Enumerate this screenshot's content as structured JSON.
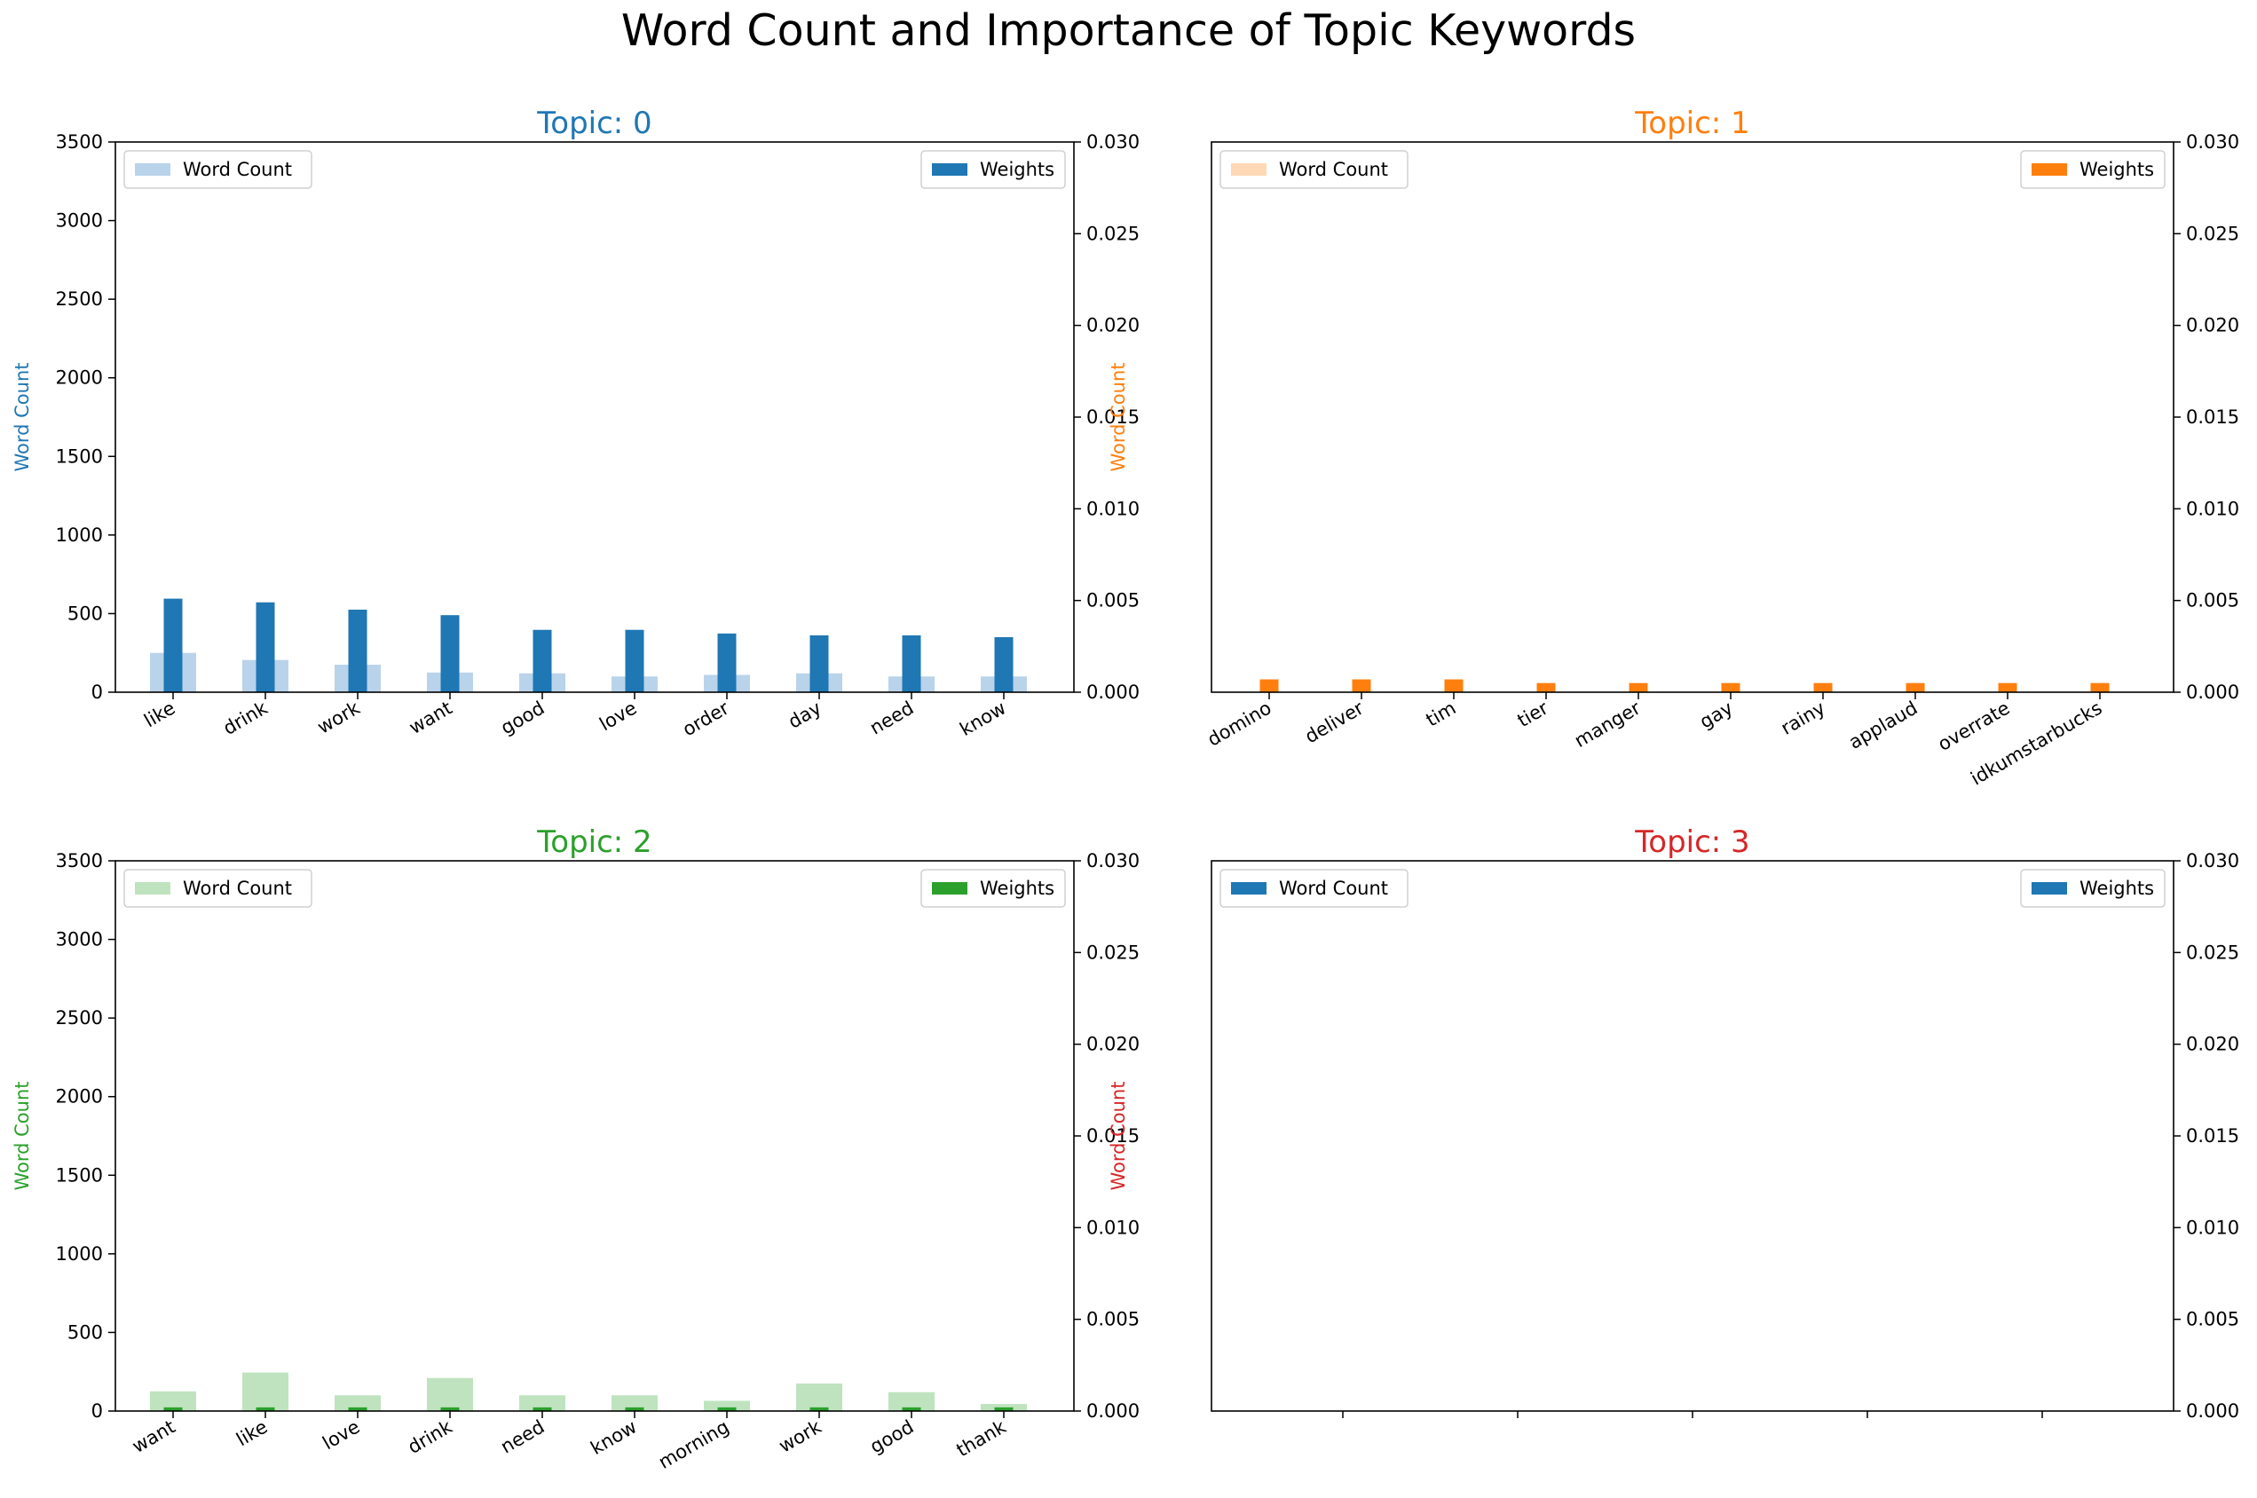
{
  "figure_title": "Word Count and Importance of Topic Keywords",
  "chart_data": [
    {
      "type": "bar",
      "title": "Topic: 0",
      "color": "#1f77b4",
      "count_color": "#b9d3ea",
      "ylabel": "Word Count",
      "ylim": [
        0,
        3500
      ],
      "y2lim": [
        0,
        0.03
      ],
      "yticks": [
        "0",
        "500",
        "1000",
        "1500",
        "2000",
        "2500",
        "3000",
        "3500"
      ],
      "y2ticks": [
        "0.000",
        "0.005",
        "0.010",
        "0.015",
        "0.020",
        "0.025",
        "0.030"
      ],
      "legend_left": "Word Count",
      "legend_right": "Weights",
      "categories": [
        "like",
        "drink",
        "work",
        "want",
        "good",
        "love",
        "order",
        "day",
        "need",
        "know"
      ],
      "series": [
        {
          "name": "Word Count",
          "axis": "left",
          "values": [
            250,
            205,
            175,
            125,
            120,
            100,
            110,
            120,
            100,
            100
          ]
        },
        {
          "name": "Weights",
          "axis": "right",
          "values": [
            0.0051,
            0.0049,
            0.0045,
            0.0042,
            0.0034,
            0.0034,
            0.0032,
            0.0031,
            0.0031,
            0.003
          ]
        }
      ]
    },
    {
      "type": "bar",
      "title": "Topic: 1",
      "color": "#ff7f0e",
      "count_color": "#ffd8b5",
      "ylabel": "Word Count",
      "ylim": [
        0,
        3500
      ],
      "y2lim": [
        0,
        0.03
      ],
      "yticks": [],
      "y2ticks": [
        "0.000",
        "0.005",
        "0.010",
        "0.015",
        "0.020",
        "0.025",
        "0.030"
      ],
      "legend_left": "Word Count",
      "legend_right": "Weights",
      "categories": [
        "domino",
        "deliver",
        "tim",
        "tier",
        "manger",
        "gay",
        "rainy",
        "applaud",
        "overrate",
        "idkumstarbucks"
      ],
      "series": [
        {
          "name": "Word Count",
          "axis": "left",
          "values": [
            2,
            2,
            2,
            2,
            2,
            2,
            2,
            2,
            2,
            2
          ]
        },
        {
          "name": "Weights",
          "axis": "right",
          "values": [
            0.0007,
            0.0007,
            0.0007,
            0.0005,
            0.0005,
            0.0005,
            0.0005,
            0.0005,
            0.0005,
            0.0005
          ]
        }
      ]
    },
    {
      "type": "bar",
      "title": "Topic: 2",
      "color": "#2ca02c",
      "count_color": "#bfe3bf",
      "ylabel": "Word Count",
      "ylim": [
        0,
        3500
      ],
      "y2lim": [
        0,
        0.03
      ],
      "yticks": [
        "0",
        "500",
        "1000",
        "1500",
        "2000",
        "2500",
        "3000",
        "3500"
      ],
      "y2ticks": [
        "0.000",
        "0.005",
        "0.010",
        "0.015",
        "0.020",
        "0.025",
        "0.030"
      ],
      "legend_left": "Word Count",
      "legend_right": "Weights",
      "categories": [
        "want",
        "like",
        "love",
        "drink",
        "need",
        "know",
        "morning",
        "work",
        "good",
        "thank"
      ],
      "series": [
        {
          "name": "Word Count",
          "axis": "left",
          "values": [
            125,
            245,
            100,
            210,
            100,
            100,
            65,
            175,
            120,
            45
          ]
        },
        {
          "name": "Weights",
          "axis": "right",
          "values": [
            0.0002,
            0.0002,
            0.0002,
            0.0002,
            0.0002,
            0.0002,
            0.0002,
            0.0002,
            0.0002,
            0.0002
          ]
        }
      ]
    },
    {
      "type": "bar",
      "title": "Topic: 3",
      "color": "#1f77b4",
      "title_color": "#d62728",
      "count_color": "#1f77b4",
      "ylabel": "Word Count",
      "ylim": [
        0,
        3500
      ],
      "y2lim": [
        0,
        0.03
      ],
      "yticks": [],
      "y2ticks": [
        "0.000",
        "0.005",
        "0.010",
        "0.015",
        "0.020",
        "0.025",
        "0.030"
      ],
      "legend_left": "Word Count",
      "legend_right": "Weights",
      "categories": [
        "",
        "",
        "",
        "",
        ""
      ],
      "series": [
        {
          "name": "Word Count",
          "axis": "left",
          "values": [
            0,
            0,
            0,
            0,
            0
          ]
        },
        {
          "name": "Weights",
          "axis": "right",
          "values": [
            0,
            0,
            0,
            0,
            0
          ]
        }
      ]
    }
  ]
}
